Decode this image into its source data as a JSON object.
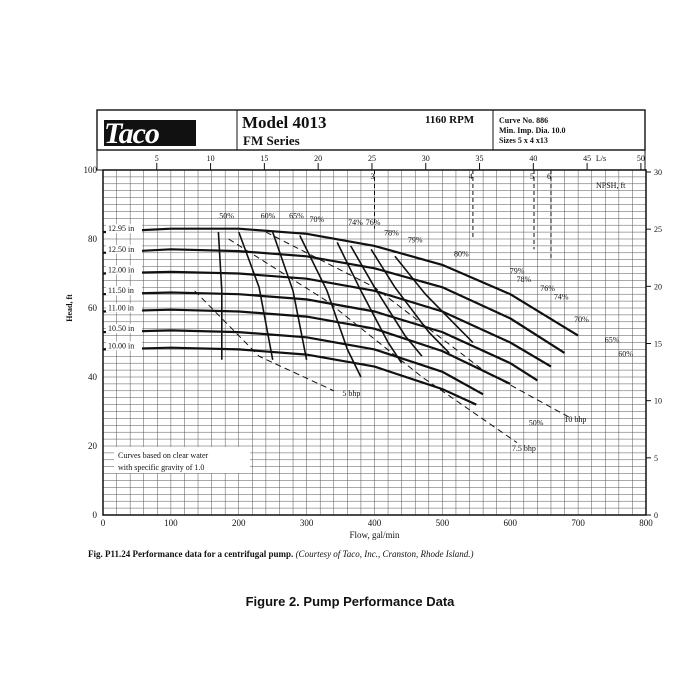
{
  "header": {
    "logo": "Taco",
    "model": "Model 4013",
    "series": "FM Series",
    "rpm": "1160 RPM",
    "curve_info": [
      "Curve No. 886",
      "Min. Imp. Dia. 10.0",
      "Sizes 5 x 4 x13"
    ]
  },
  "caption": {
    "fig_no": "Fig. P11.24",
    "text": "Performance data for a centrifugal pump.",
    "courtesy": "(Courtesy of Taco, Inc., Cranston, Rhode Island.)"
  },
  "figure_title": "Figure 2.  Pump Performance Data",
  "chart_data": {
    "type": "line",
    "xlabel": "Flow, gal/min",
    "ylabel": "Head, ft",
    "xlim": [
      0,
      800
    ],
    "ylim": [
      0,
      100
    ],
    "x_ticks": [
      "0",
      "100",
      "200",
      "300",
      "400",
      "500",
      "600",
      "700",
      "800"
    ],
    "y_ticks": [
      "0",
      "20",
      "40",
      "60",
      "80",
      "100"
    ],
    "top_axis_label": "L/s",
    "top_ticks": [
      "5",
      "10",
      "15",
      "20",
      "25",
      "30",
      "35",
      "40",
      "45",
      "50"
    ],
    "right_axis_label": "NPSH, ft",
    "right_ticks": [
      "0",
      "5",
      "10",
      "15",
      "20",
      "25",
      "30"
    ],
    "grid": true,
    "note": "Curves based on clear water with specific gravity of 1.0",
    "series": [
      {
        "name": "12.95 in",
        "x": [
          0,
          100,
          200,
          300,
          400,
          500,
          600,
          700
        ],
        "y": [
          82,
          83,
          83,
          81.5,
          78,
          72.5,
          64,
          52
        ]
      },
      {
        "name": "12.50 in",
        "x": [
          0,
          100,
          200,
          300,
          400,
          500,
          600,
          680
        ],
        "y": [
          76,
          77,
          76.5,
          75,
          71.5,
          66,
          57,
          47
        ]
      },
      {
        "name": "12.00 in",
        "x": [
          0,
          100,
          200,
          300,
          400,
          500,
          600,
          660
        ],
        "y": [
          70,
          70.5,
          70,
          68.5,
          65,
          59,
          50,
          43
        ]
      },
      {
        "name": "11.50 in",
        "x": [
          0,
          100,
          200,
          300,
          400,
          500,
          600,
          640
        ],
        "y": [
          64,
          64.5,
          64,
          62.5,
          59,
          53,
          44,
          39
        ]
      },
      {
        "name": "11.00 in",
        "x": [
          0,
          100,
          200,
          300,
          400,
          500,
          600
        ],
        "y": [
          59,
          59.5,
          59,
          57.5,
          54,
          47.5,
          38
        ]
      },
      {
        "name": "10.50 in",
        "x": [
          0,
          100,
          200,
          300,
          400,
          500,
          560
        ],
        "y": [
          53,
          53.5,
          53,
          51.5,
          48,
          41.5,
          35
        ]
      },
      {
        "name": "10.00 in",
        "x": [
          0,
          100,
          200,
          300,
          400,
          500,
          550
        ],
        "y": [
          48,
          48.5,
          48,
          46.5,
          43,
          36.5,
          32
        ]
      }
    ],
    "efficiency_labels": [
      "50%",
      "60%",
      "65%",
      "70%",
      "74%",
      "76%",
      "78%",
      "79%",
      "80%",
      "79%",
      "78%",
      "76%",
      "74%",
      "70%",
      "65%",
      "60%",
      "50%"
    ],
    "bhp_labels": [
      "5 bhp",
      "7.5 bhp",
      "10 bhp"
    ],
    "npsh_labels": [
      "3",
      "4",
      "5",
      "6"
    ]
  }
}
